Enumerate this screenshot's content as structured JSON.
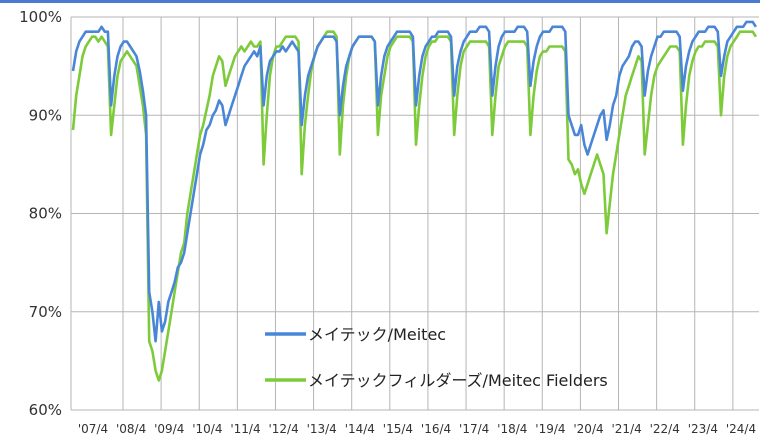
{
  "chart_data": {
    "type": "line",
    "title": "",
    "xlabel": "",
    "ylabel": "",
    "ylim": [
      60,
      100
    ],
    "y_ticks": [
      "100%",
      "90%",
      "80%",
      "70%",
      "60%"
    ],
    "y_tick_values": [
      100,
      90,
      80,
      70,
      60
    ],
    "x_tick_labels": [
      "'07/4",
      "'08/4",
      "'09/4",
      "'10/4",
      "'11/4",
      "'12/4",
      "'13/4",
      "'14/4",
      "'15/4",
      "'16/4",
      "'17/4",
      "'18/4",
      "'19/4",
      "'20/4",
      "'21/4",
      "'22/4",
      "'23/4",
      "'24/4"
    ],
    "grid": true,
    "legend_position": "bottom-center",
    "colors": {
      "grid": "#b5b5b5",
      "axis_top": "#4a7bd0"
    },
    "series": [
      {
        "name": "メイテック/Meitec",
        "color": "#4a86d8",
        "x_start_year": 2007,
        "values": [
          94.5,
          96.5,
          97.5,
          98,
          98.5,
          98.5,
          98.5,
          98.5,
          98.5,
          99,
          98.5,
          98.5,
          91,
          94,
          96,
          97,
          97.5,
          97.5,
          97,
          96.5,
          96,
          94.5,
          92.5,
          90,
          72,
          70,
          67,
          71,
          68,
          69,
          71,
          72,
          73,
          74.5,
          75,
          76,
          78,
          80,
          82,
          84,
          86,
          87,
          88.5,
          89,
          90,
          90.5,
          91.5,
          91,
          89,
          90,
          91,
          92,
          93,
          94,
          95,
          95.5,
          96,
          96.5,
          96,
          97,
          91,
          94,
          95.5,
          96,
          96.5,
          96.5,
          97,
          96.5,
          97,
          97.5,
          97,
          96.5,
          89,
          92,
          94,
          95,
          96,
          97,
          97.5,
          98,
          98,
          98,
          98,
          97.5,
          90,
          93,
          95,
          96,
          97,
          97.5,
          98,
          98,
          98,
          98,
          98,
          97.5,
          91,
          94,
          96,
          97,
          97.5,
          98,
          98.5,
          98.5,
          98.5,
          98.5,
          98.5,
          98,
          91,
          94,
          96,
          97,
          97.5,
          98,
          98,
          98.5,
          98.5,
          98.5,
          98.5,
          98,
          92,
          95,
          96.5,
          97.5,
          98,
          98.5,
          98.5,
          98.5,
          99,
          99,
          99,
          98.5,
          92,
          95,
          97,
          98,
          98.5,
          98.5,
          98.5,
          98.5,
          99,
          99,
          99,
          98.5,
          93,
          95.5,
          97,
          98,
          98.5,
          98.5,
          98.5,
          99,
          99,
          99,
          99,
          98.5,
          90,
          89,
          88,
          88,
          89,
          87,
          86,
          87,
          88,
          89,
          90,
          90.5,
          87.5,
          89,
          91,
          92,
          94,
          95,
          95.5,
          96,
          97,
          97.5,
          97.5,
          97,
          92,
          94.5,
          96,
          97,
          98,
          98,
          98.5,
          98.5,
          98.5,
          98.5,
          98.5,
          98,
          92.5,
          95,
          96.5,
          97.5,
          98,
          98.5,
          98.5,
          98.5,
          99,
          99,
          99,
          98.5,
          94,
          96,
          97.5,
          98,
          98.5,
          99,
          99,
          99,
          99.5,
          99.5,
          99.5,
          99
        ]
      },
      {
        "name": "メイテックフィルダーズ/Meitec Fielders",
        "color": "#7dcb3a",
        "x_start_year": 2007,
        "values": [
          88.5,
          92,
          94,
          96,
          97,
          97.5,
          98,
          98,
          97.5,
          98,
          97.5,
          97,
          88,
          91,
          94,
          95.5,
          96,
          96.5,
          96,
          95.5,
          95,
          93,
          91,
          88,
          67,
          66,
          64,
          63,
          64,
          66,
          68,
          70,
          72,
          74,
          76,
          77,
          80,
          82,
          84,
          86,
          88,
          89,
          90.5,
          92,
          94,
          95,
          96,
          95.5,
          93,
          94,
          95,
          96,
          96.5,
          97,
          96.5,
          97,
          97.5,
          97,
          97,
          97.5,
          85,
          90,
          94,
          96,
          97,
          97,
          97.5,
          98,
          98,
          98,
          98,
          97.5,
          84,
          89,
          92,
          94.5,
          96,
          97,
          97.5,
          98,
          98.5,
          98.5,
          98.5,
          98,
          86,
          91,
          94,
          96,
          97,
          97.5,
          98,
          98,
          98,
          98,
          98,
          97.5,
          88,
          92,
          94,
          96,
          97,
          97.5,
          98,
          98,
          98,
          98,
          98,
          97.5,
          87,
          91,
          94,
          96,
          97,
          97.5,
          97.5,
          98,
          98,
          98,
          98,
          97.5,
          88,
          92,
          95,
          96.5,
          97,
          97.5,
          97.5,
          97.5,
          97.5,
          97.5,
          97.5,
          97,
          88,
          92,
          95,
          96,
          97,
          97.5,
          97.5,
          97.5,
          97.5,
          97.5,
          97.5,
          97,
          88,
          92,
          94.5,
          96,
          96.5,
          96.5,
          97,
          97,
          97,
          97,
          97,
          96.5,
          85.5,
          85,
          84,
          84.5,
          83,
          82,
          83,
          84,
          85,
          86,
          85,
          84,
          78,
          81,
          84,
          86,
          88,
          90,
          92,
          93,
          94,
          95,
          96,
          95.5,
          86,
          89,
          92,
          94,
          95,
          95.5,
          96,
          96.5,
          97,
          97,
          97,
          96.5,
          87,
          91,
          94,
          95.5,
          96.5,
          97,
          97,
          97.5,
          97.5,
          97.5,
          97.5,
          97,
          90,
          94,
          96,
          97,
          97.5,
          98,
          98.5,
          98.5,
          98.5,
          98.5,
          98.5,
          98
        ]
      }
    ]
  }
}
